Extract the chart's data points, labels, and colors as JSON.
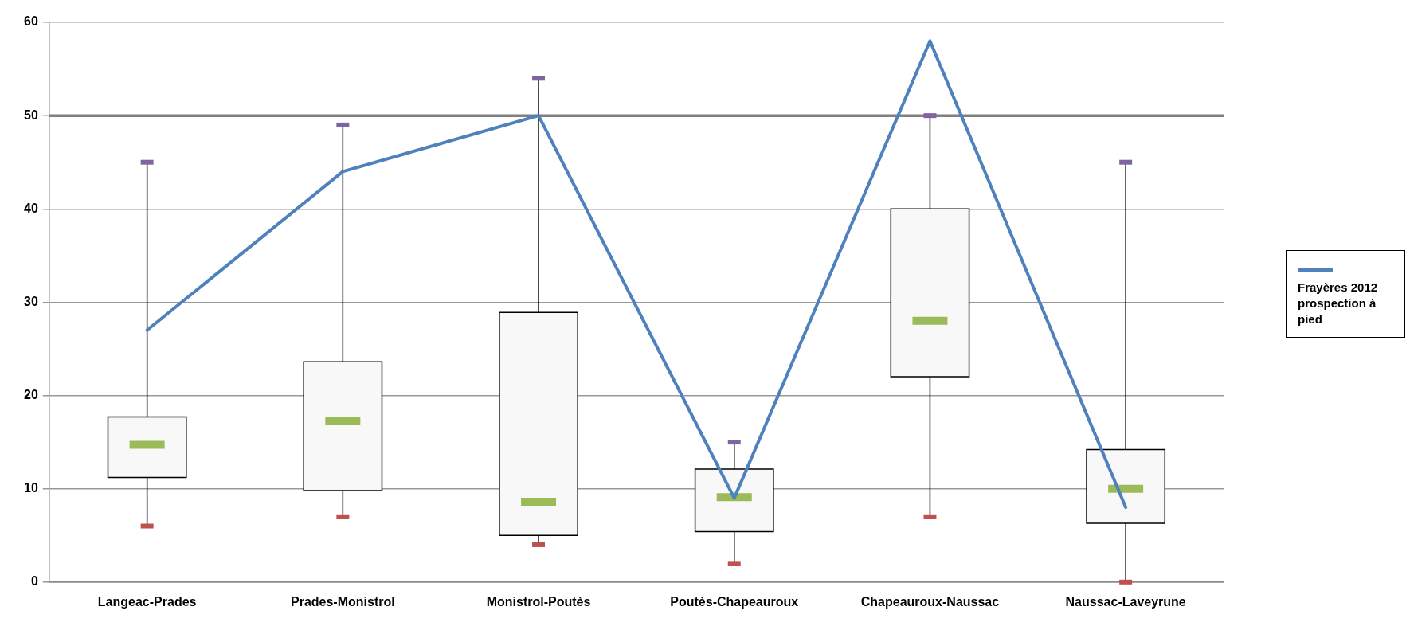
{
  "chart_data": {
    "type": "box",
    "categories": [
      "Langeac-Prades",
      "Prades-Monistrol",
      "Monistrol-Poutès",
      "Poutès-Chapeauroux",
      "Chapeauroux-Naussac",
      "Naussac-Laveyrune"
    ],
    "boxes": [
      {
        "low": 6,
        "q1": 11.2,
        "median": 14.7,
        "q3": 17.7,
        "high": 45
      },
      {
        "low": 7,
        "q1": 9.8,
        "median": 17.3,
        "q3": 23.6,
        "high": 49
      },
      {
        "low": 4,
        "q1": 5,
        "median": 8.6,
        "q3": 28.9,
        "high": 54
      },
      {
        "low": 2,
        "q1": 5.4,
        "median": 9.1,
        "q3": 12.1,
        "high": 15
      },
      {
        "low": 7,
        "q1": 22,
        "median": 28,
        "q3": 40,
        "high": 50
      },
      {
        "low": 0,
        "q1": 6.3,
        "median": 10,
        "q3": 14.2,
        "high": 45
      }
    ],
    "series": [
      {
        "type": "line",
        "name": "Frayères 2012 prospection à pied",
        "color": "#4f81bd",
        "values": [
          27,
          44,
          50,
          9,
          58,
          8
        ]
      }
    ],
    "ylim": [
      0,
      60
    ],
    "yticks": [
      0,
      10,
      20,
      30,
      40,
      50,
      60
    ],
    "grid": "y",
    "legend": "right",
    "marker": "none",
    "ref_lines": [
      {
        "axis": "y",
        "value": 50,
        "color": "#808080"
      }
    ]
  }
}
